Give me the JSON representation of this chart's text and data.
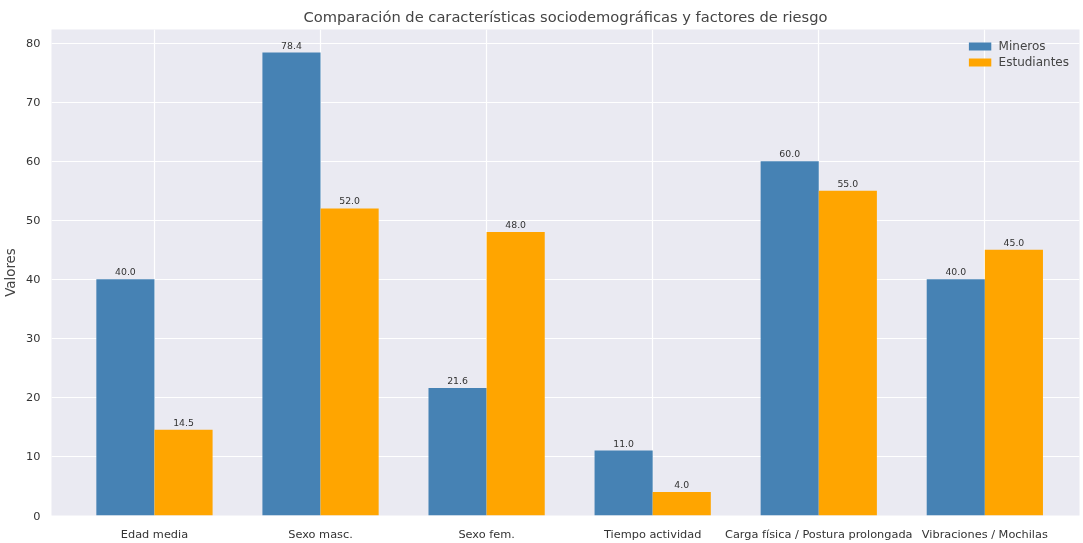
{
  "chart_data": {
    "type": "bar",
    "title": "Comparación de características sociodemográficas y factores de riesgo",
    "ylabel": "Valores",
    "categories": [
      "Edad media",
      "Sexo masc.",
      "Sexo fem.",
      "Tiempo actividad",
      "Carga física / Postura prolongada",
      "Vibraciones / Mochilas"
    ],
    "series": [
      {
        "name": "Mineros",
        "color": "#4682b4",
        "values": [
          40.0,
          78.4,
          21.6,
          11.0,
          60.0,
          40.0
        ],
        "value_labels": [
          "40.0",
          "78.4",
          "21.6",
          "11.0",
          "60.0",
          "40.0"
        ]
      },
      {
        "name": "Estudiantes",
        "color": "#ffa500",
        "values": [
          14.5,
          52.0,
          48.0,
          4.0,
          55.0,
          45.0
        ],
        "value_labels": [
          "14.5",
          "52.0",
          "48.0",
          "4.0",
          "55.0",
          "45.0"
        ]
      }
    ],
    "ylim": [
      0,
      82.3
    ],
    "yticks": [
      0,
      10,
      20,
      30,
      40,
      50,
      60,
      70,
      80
    ],
    "grid": true,
    "legend": "top right"
  }
}
